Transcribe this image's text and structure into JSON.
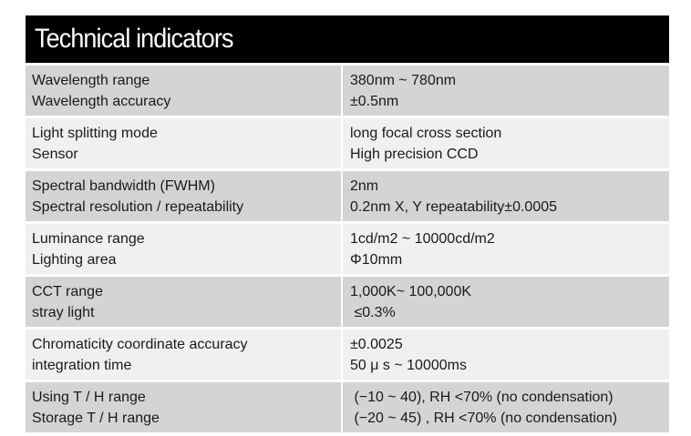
{
  "title": "Technical indicators",
  "rows": [
    {
      "left": [
        "Wavelength range",
        "Wavelength accuracy"
      ],
      "right": [
        "380nm ~ 780nm",
        "±0.5nm"
      ]
    },
    {
      "left": [
        "Light splitting mode",
        "Sensor"
      ],
      "right": [
        "long focal cross section",
        "High precision CCD"
      ]
    },
    {
      "left": [
        "Spectral bandwidth (FWHM)",
        "Spectral resolution / repeatability"
      ],
      "right": [
        "2nm",
        "0.2nm  X, Y repeatability±0.0005"
      ]
    },
    {
      "left": [
        "Luminance  range",
        "Lighting area"
      ],
      "right": [
        "1cd/m2 ~ 10000cd/m2",
        "Φ10mm"
      ]
    },
    {
      "left": [
        "CCT range",
        "stray light"
      ],
      "right": [
        "1,000K~ 100,000K",
        " ≤0.3%"
      ]
    },
    {
      "left": [
        "Chromaticity coordinate accuracy",
        "integration time"
      ],
      "right": [
        "±0.0025",
        "50 μ s ~ 10000ms"
      ]
    },
    {
      "left": [
        "Using T / H range",
        "Storage T / H range"
      ],
      "right": [
        " (−10 ~ 40), RH <70% (no condensation)",
        " (−20 ~ 45) , RH <70% (no condensation)"
      ]
    }
  ]
}
